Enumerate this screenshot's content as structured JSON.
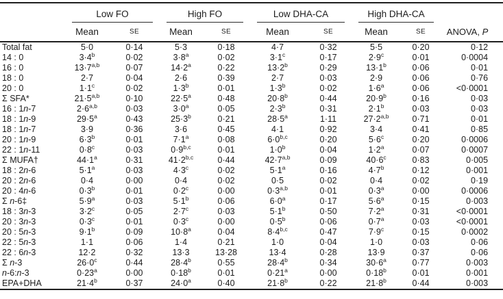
{
  "table": {
    "groups": [
      {
        "label": "Low FO"
      },
      {
        "label": "High FO"
      },
      {
        "label": "Low DHA-CA"
      },
      {
        "label": "High DHA-CA"
      }
    ],
    "subheaders": {
      "mean": "Mean",
      "se": "SE"
    },
    "anova_header": {
      "text": "ANOVA, ",
      "p": "P"
    },
    "rows": [
      {
        "label": "Total fat",
        "cells": [
          "5·0",
          "0·14",
          "5·3",
          "0·18",
          "4·7",
          "0·32",
          "5·5",
          "0·20"
        ],
        "anova": "0·12"
      },
      {
        "label": "14 : 0",
        "cells": [
          "3·4^b",
          "0·02",
          "3·8^a",
          "0·02",
          "3·1^c",
          "0·17",
          "2·9^c",
          "0·01"
        ],
        "anova": "0·0004"
      },
      {
        "label": "16 : 0",
        "cells": [
          "13·7^a,b",
          "0·07",
          "14·2^a",
          "0·22",
          "13·2^b",
          "0·29",
          "13·1^b",
          "0·06"
        ],
        "anova": "0·01"
      },
      {
        "label": "18 : 0",
        "cells": [
          "2·7",
          "0·04",
          "2·6",
          "0·39",
          "2·7",
          "0·03",
          "2·9",
          "0·06"
        ],
        "anova": "0·76"
      },
      {
        "label": "20 : 0",
        "cells": [
          "1·1^c",
          "0·02",
          "1·3^b",
          "0·01",
          "1·3^b",
          "0·02",
          "1·6^a",
          "0·06"
        ],
        "anova": "<0·0001"
      },
      {
        "label": "Σ SFA*",
        "cells": [
          "21·5^a,b",
          "0·10",
          "22·5^a",
          "0·48",
          "20·8^b",
          "0·44",
          "20·9^b",
          "0·16"
        ],
        "anova": "0·03"
      },
      {
        "label": "16 : 1~n~-7",
        "cells": [
          "2·6^a,b",
          "0·03",
          "3·0^a",
          "0·05",
          "2·3^b",
          "0·31",
          "2·1^b",
          "0·03"
        ],
        "anova": "0·03"
      },
      {
        "label": "18 : 1~n~-9",
        "cells": [
          "29·5^a",
          "0·43",
          "25·3^b",
          "0·21",
          "28·5^a",
          "1·11",
          "27·2^a,b",
          "0·71"
        ],
        "anova": "0·01"
      },
      {
        "label": "18 : 1~n~-7",
        "cells": [
          "3·9",
          "0·36",
          "3·6",
          "0·45",
          "4·1",
          "0·92",
          "3·4",
          "0·41"
        ],
        "anova": "0·85"
      },
      {
        "label": "20 : 1~n~-9",
        "cells": [
          "6·3^b",
          "0·01",
          "7·1^a",
          "0·08",
          "6·0^b,c",
          "0·20",
          "5·6^c",
          "0·20"
        ],
        "anova": "0·0006"
      },
      {
        "label": "22 : 1~n~-11",
        "cells": [
          "0·8^c",
          "0·03",
          "0·9^b,c",
          "0·01",
          "1·0^b",
          "0·04",
          "1·2^a",
          "0·07"
        ],
        "anova": "0·0007"
      },
      {
        "label": "Σ MUFA†",
        "cells": [
          "44·1^a",
          "0·31",
          "41·2^b,c",
          "0·44",
          "42·7^a,b",
          "0·09",
          "40·6^c",
          "0·83"
        ],
        "anova": "0·005"
      },
      {
        "label": "18 : 2~n~-6",
        "cells": [
          "5·1^a",
          "0·03",
          "4·3^c",
          "0·02",
          "5·1^a",
          "0·16",
          "4·7^b",
          "0·12"
        ],
        "anova": "0·001"
      },
      {
        "label": "20 : 2~n~-6",
        "cells": [
          "0·4",
          "0·00",
          "0·4",
          "0·02",
          "0·5",
          "0·02",
          "0·4",
          "0·02"
        ],
        "anova": "0·19"
      },
      {
        "label": "20 : 4~n~-6",
        "cells": [
          "0·3^b",
          "0·01",
          "0·2^c",
          "0·00",
          "0·3^a,b",
          "0·01",
          "0·3^a",
          "0·00"
        ],
        "anova": "0·0006"
      },
      {
        "label": "Σ ~n~-6‡",
        "cells": [
          "5·9^a",
          "0·03",
          "5·1^b",
          "0·06",
          "6·0^a",
          "0·17",
          "5·6^a",
          "0·15"
        ],
        "anova": "0·003"
      },
      {
        "label": "18 : 3~n~-3",
        "cells": [
          "3·2^c",
          "0·05",
          "2·7^c",
          "0·03",
          "5·1^b",
          "0·50",
          "7·2^a",
          "0·31"
        ],
        "anova": "<0·0001"
      },
      {
        "label": "20 : 3~n~-3",
        "cells": [
          "0·3^c",
          "0·01",
          "0·3^c",
          "0·00",
          "0·5^b",
          "0·06",
          "0·7^a",
          "0·03"
        ],
        "anova": "<0·0001"
      },
      {
        "label": "20 : 5~n~-3",
        "cells": [
          "9·1^b",
          "0·09",
          "10·8^a",
          "0·04",
          "8·4^b,c",
          "0·47",
          "7·9^c",
          "0·15"
        ],
        "anova": "0·0002"
      },
      {
        "label": "22 : 5~n~-3",
        "cells": [
          "1·1",
          "0·06",
          "1·4",
          "0·21",
          "1·0",
          "0·04",
          "1·0",
          "0·03"
        ],
        "anova": "0·06"
      },
      {
        "label": "22 : 6~n~-3",
        "cells": [
          "12·2",
          "0·32",
          "13·3",
          "13·28",
          "13·4",
          "0·28",
          "13·9",
          "0·37"
        ],
        "anova": "0·06"
      },
      {
        "label": "Σ ~n~-3",
        "cells": [
          "26·0^c",
          "0·44",
          "28·4^b",
          "0·55",
          "28·4^b",
          "0·34",
          "30·6^a",
          "0·77"
        ],
        "anova": "0·003"
      },
      {
        "label": "~n~-6:~n~-3",
        "cells": [
          "0·23^a",
          "0·00",
          "0·18^b",
          "0·01",
          "0·21^a",
          "0·00",
          "0·18^b",
          "0·01"
        ],
        "anova": "0·001"
      },
      {
        "label": "EPA+DHA",
        "cells": [
          "21·4^b",
          "0·37",
          "24·0^a",
          "0·40",
          "21·8^b",
          "0·22",
          "21·8^b",
          "0·44"
        ],
        "anova": "0·003"
      }
    ]
  }
}
